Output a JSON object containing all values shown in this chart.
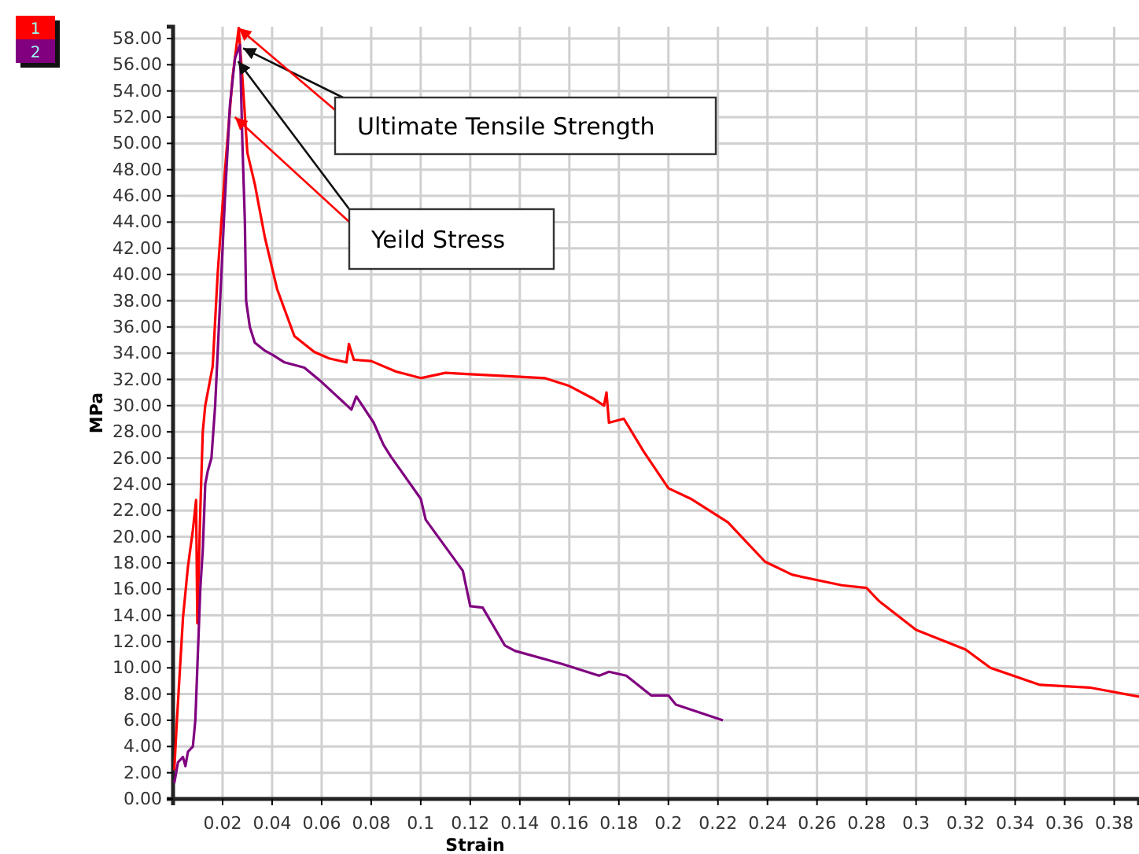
{
  "chart_data": {
    "type": "line",
    "xlabel": "Strain",
    "ylabel": "MPa",
    "xlim": [
      0,
      0.39
    ],
    "ylim": [
      0,
      58.9
    ],
    "xticks": [
      0.02,
      0.04,
      0.06,
      0.08,
      0.1,
      0.12,
      0.14,
      0.16,
      0.18,
      0.2,
      0.22,
      0.24,
      0.26,
      0.28,
      0.3,
      0.32,
      0.34,
      0.36,
      0.38
    ],
    "yticks": [
      {
        "value": 0,
        "label": "0.00"
      },
      {
        "value": 2,
        "label": "2.00"
      },
      {
        "value": 4,
        "label": "4.00"
      },
      {
        "value": 6,
        "label": "6.00"
      },
      {
        "value": 8,
        "label": "8.00"
      },
      {
        "value": 10,
        "label": "10.00"
      },
      {
        "value": 12,
        "label": "12.00"
      },
      {
        "value": 14,
        "label": "14.00"
      },
      {
        "value": 16,
        "label": "16.00"
      },
      {
        "value": 18,
        "label": "18.00"
      },
      {
        "value": 20,
        "label": "20.00"
      },
      {
        "value": 22,
        "label": "22.00"
      },
      {
        "value": 24,
        "label": "24.00"
      },
      {
        "value": 26,
        "label": "26.00"
      },
      {
        "value": 28,
        "label": "28.00"
      },
      {
        "value": 30,
        "label": "30.00"
      },
      {
        "value": 32,
        "label": "32.00"
      },
      {
        "value": 34,
        "label": "34.00"
      },
      {
        "value": 36,
        "label": "36.00"
      },
      {
        "value": 38,
        "label": "38.00"
      },
      {
        "value": 40,
        "label": "40.00"
      },
      {
        "value": 42,
        "label": "42.00"
      },
      {
        "value": 44,
        "label": "44.00"
      },
      {
        "value": 46,
        "label": "46.00"
      },
      {
        "value": 48,
        "label": "48.00"
      },
      {
        "value": 50,
        "label": "50.00"
      },
      {
        "value": 52,
        "label": "52.00"
      },
      {
        "value": 54,
        "label": "54.00"
      },
      {
        "value": 56,
        "label": "56.00"
      },
      {
        "value": 58,
        "label": "58.00"
      }
    ],
    "grid": true,
    "legend": "top left",
    "marker": "none",
    "line_style": "solid",
    "series": [
      {
        "name": "1",
        "color": "#ff0000",
        "x": [
          0.0005,
          0.0015,
          0.004,
          0.006,
          0.008,
          0.0093,
          0.0098,
          0.011,
          0.012,
          0.013,
          0.016,
          0.018,
          0.021,
          0.024,
          0.0265,
          0.028,
          0.03,
          0.033,
          0.037,
          0.042,
          0.049,
          0.057,
          0.063,
          0.07,
          0.071,
          0.073,
          0.08,
          0.09,
          0.1,
          0.11,
          0.12,
          0.14,
          0.15,
          0.16,
          0.17,
          0.174,
          0.175,
          0.176,
          0.182,
          0.19,
          0.2,
          0.209,
          0.224,
          0.239,
          0.25,
          0.27,
          0.28,
          0.285,
          0.3,
          0.32,
          0.33,
          0.35,
          0.37,
          0.39
        ],
        "values": [
          2.2,
          5.8,
          13.8,
          17.7,
          20.5,
          22.8,
          13.4,
          22,
          28,
          30,
          33,
          40,
          48,
          55,
          58.8,
          55,
          49.3,
          46.9,
          42.9,
          38.9,
          35.3,
          34.1,
          33.6,
          33.3,
          34.7,
          33.5,
          33.4,
          32.6,
          32.1,
          32.5,
          32.4,
          32.2,
          32.1,
          31.5,
          30.5,
          30,
          31,
          28.7,
          29,
          26.5,
          23.7,
          22.9,
          21.1,
          18.1,
          17.1,
          16.3,
          16.1,
          15.1,
          12.9,
          11.4,
          10,
          8.7,
          8.5,
          7.8
        ]
      },
      {
        "name": "2",
        "color": "#800080",
        "x": [
          0.0005,
          0.002,
          0.004,
          0.005,
          0.006,
          0.008,
          0.009,
          0.01,
          0.011,
          0.012,
          0.013,
          0.014,
          0.0155,
          0.017,
          0.019,
          0.021,
          0.023,
          0.025,
          0.027,
          0.028,
          0.029,
          0.0295,
          0.031,
          0.033,
          0.037,
          0.04,
          0.045,
          0.053,
          0.06,
          0.072,
          0.074,
          0.081,
          0.085,
          0.088,
          0.1,
          0.102,
          0.117,
          0.12,
          0.125,
          0.134,
          0.138,
          0.157,
          0.172,
          0.176,
          0.183,
          0.193,
          0.2,
          0.203,
          0.222
        ],
        "values": [
          1.2,
          2.8,
          3.2,
          2.5,
          3.6,
          4,
          6,
          11,
          16,
          19,
          24,
          25,
          26,
          30,
          38,
          46,
          53,
          56.5,
          57.5,
          50,
          44,
          38,
          36,
          34.8,
          34.2,
          33.9,
          33.3,
          32.9,
          31.8,
          29.7,
          30.7,
          28.7,
          27,
          26.1,
          22.9,
          21.3,
          17.4,
          14.7,
          14.6,
          11.7,
          11.3,
          10.3,
          9.4,
          9.7,
          9.4,
          7.9,
          7.9,
          7.2,
          6
        ]
      }
    ],
    "annotations": [
      {
        "text": "Ultimate Tensile Strength",
        "x": 0.0265,
        "y": 58.8
      },
      {
        "text": "Yeild Stress",
        "x": 0.025,
        "y": 52
      }
    ]
  }
}
